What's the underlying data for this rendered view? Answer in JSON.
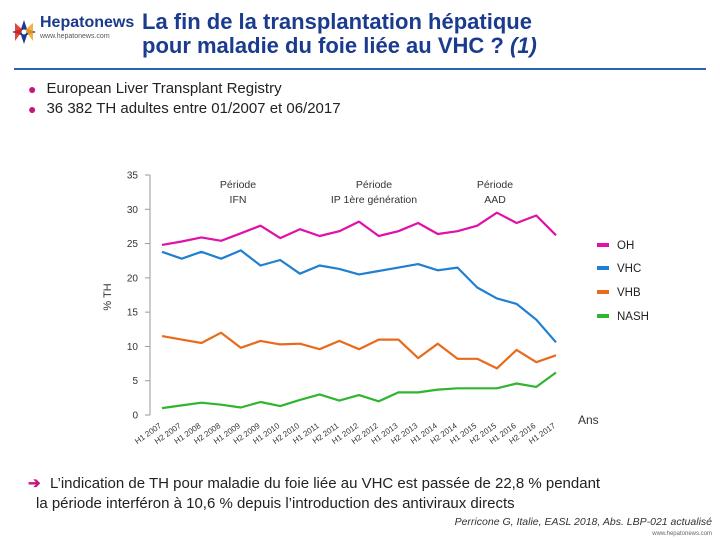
{
  "header": {
    "logo_name": "Hepatonews",
    "logo_url": "www.hepatonews.com",
    "title_line1": "La fin de la transplantation hépatique",
    "title_line2_main": "pour maladie du foie liée au VHC ?",
    "title_line2_suffix": "(1)"
  },
  "bullets": [
    "European Liver Transplant Registry",
    "36 382 TH adultes entre 01/2007 et 06/2017"
  ],
  "conclusion": {
    "line1": "L’indication de TH pour maladie du foie liée au VHC est passée de 22,8 % pendant",
    "line2": "la période interféron à 10,6 % depuis l’introduction des antiviraux directs"
  },
  "reference": "Perricone G, Italie, EASL 2018, Abs. LBP-021 actualisé",
  "footer_url": "www.hepatonews.com",
  "colors": {
    "oh": "#e010a8",
    "vhc": "#1f7fd1",
    "vhb": "#e86a1a",
    "nash": "#2fb52f",
    "title": "#1b3b8f",
    "accent": "#c8157e"
  },
  "chart_data": {
    "type": "line",
    "ylabel": "% TH",
    "xlabel": "Ans",
    "ylim": [
      0,
      35
    ],
    "yticks": [
      0,
      5,
      10,
      15,
      20,
      25,
      30,
      35
    ],
    "grid": false,
    "legend_position": "right",
    "periods": [
      {
        "line1": "Période",
        "line2": "IFN"
      },
      {
        "line1": "Période",
        "line2": "IP 1ère génération"
      },
      {
        "line1": "Période",
        "line2": "AAD"
      }
    ],
    "categories": [
      "H1 2007",
      "H2 2007",
      "H1 2008",
      "H2 2008",
      "H1 2009",
      "H2 2009",
      "H1 2010",
      "H2 2010",
      "H1 2011",
      "H2 2011",
      "H1 2012",
      "H2 2012",
      "H1 2013",
      "H2 2013",
      "H1 2014",
      "H2 2014",
      "H1 2015",
      "H2 2015",
      "H1 2016",
      "H2 2016",
      "H1 2017"
    ],
    "series": [
      {
        "name": "OH",
        "color_key": "oh",
        "values": [
          24.8,
          25.3,
          25.9,
          25.4,
          26.5,
          27.6,
          25.8,
          27.1,
          26.1,
          26.8,
          28.2,
          26.1,
          26.8,
          28.0,
          26.4,
          26.8,
          27.6,
          29.5,
          28.0,
          29.1,
          26.2
        ]
      },
      {
        "name": "VHC",
        "color_key": "vhc",
        "values": [
          23.8,
          22.8,
          23.8,
          22.8,
          24.0,
          21.8,
          22.6,
          20.6,
          21.8,
          21.3,
          20.5,
          21.0,
          21.5,
          22.0,
          21.1,
          21.5,
          18.6,
          17.0,
          16.2,
          13.9,
          10.6
        ]
      },
      {
        "name": "VHB",
        "color_key": "vhb",
        "values": [
          11.5,
          11.0,
          10.5,
          12.0,
          9.8,
          10.8,
          10.3,
          10.4,
          9.6,
          10.8,
          9.6,
          11.0,
          11.0,
          8.3,
          10.4,
          8.2,
          8.2,
          6.8,
          9.5,
          7.7,
          8.7
        ]
      },
      {
        "name": "NASH",
        "color_key": "nash",
        "values": [
          1.0,
          1.4,
          1.8,
          1.5,
          1.1,
          1.9,
          1.3,
          2.2,
          3.0,
          2.1,
          2.9,
          2.0,
          3.3,
          3.3,
          3.7,
          3.9,
          3.9,
          3.9,
          4.6,
          4.1,
          6.2
        ]
      }
    ]
  }
}
